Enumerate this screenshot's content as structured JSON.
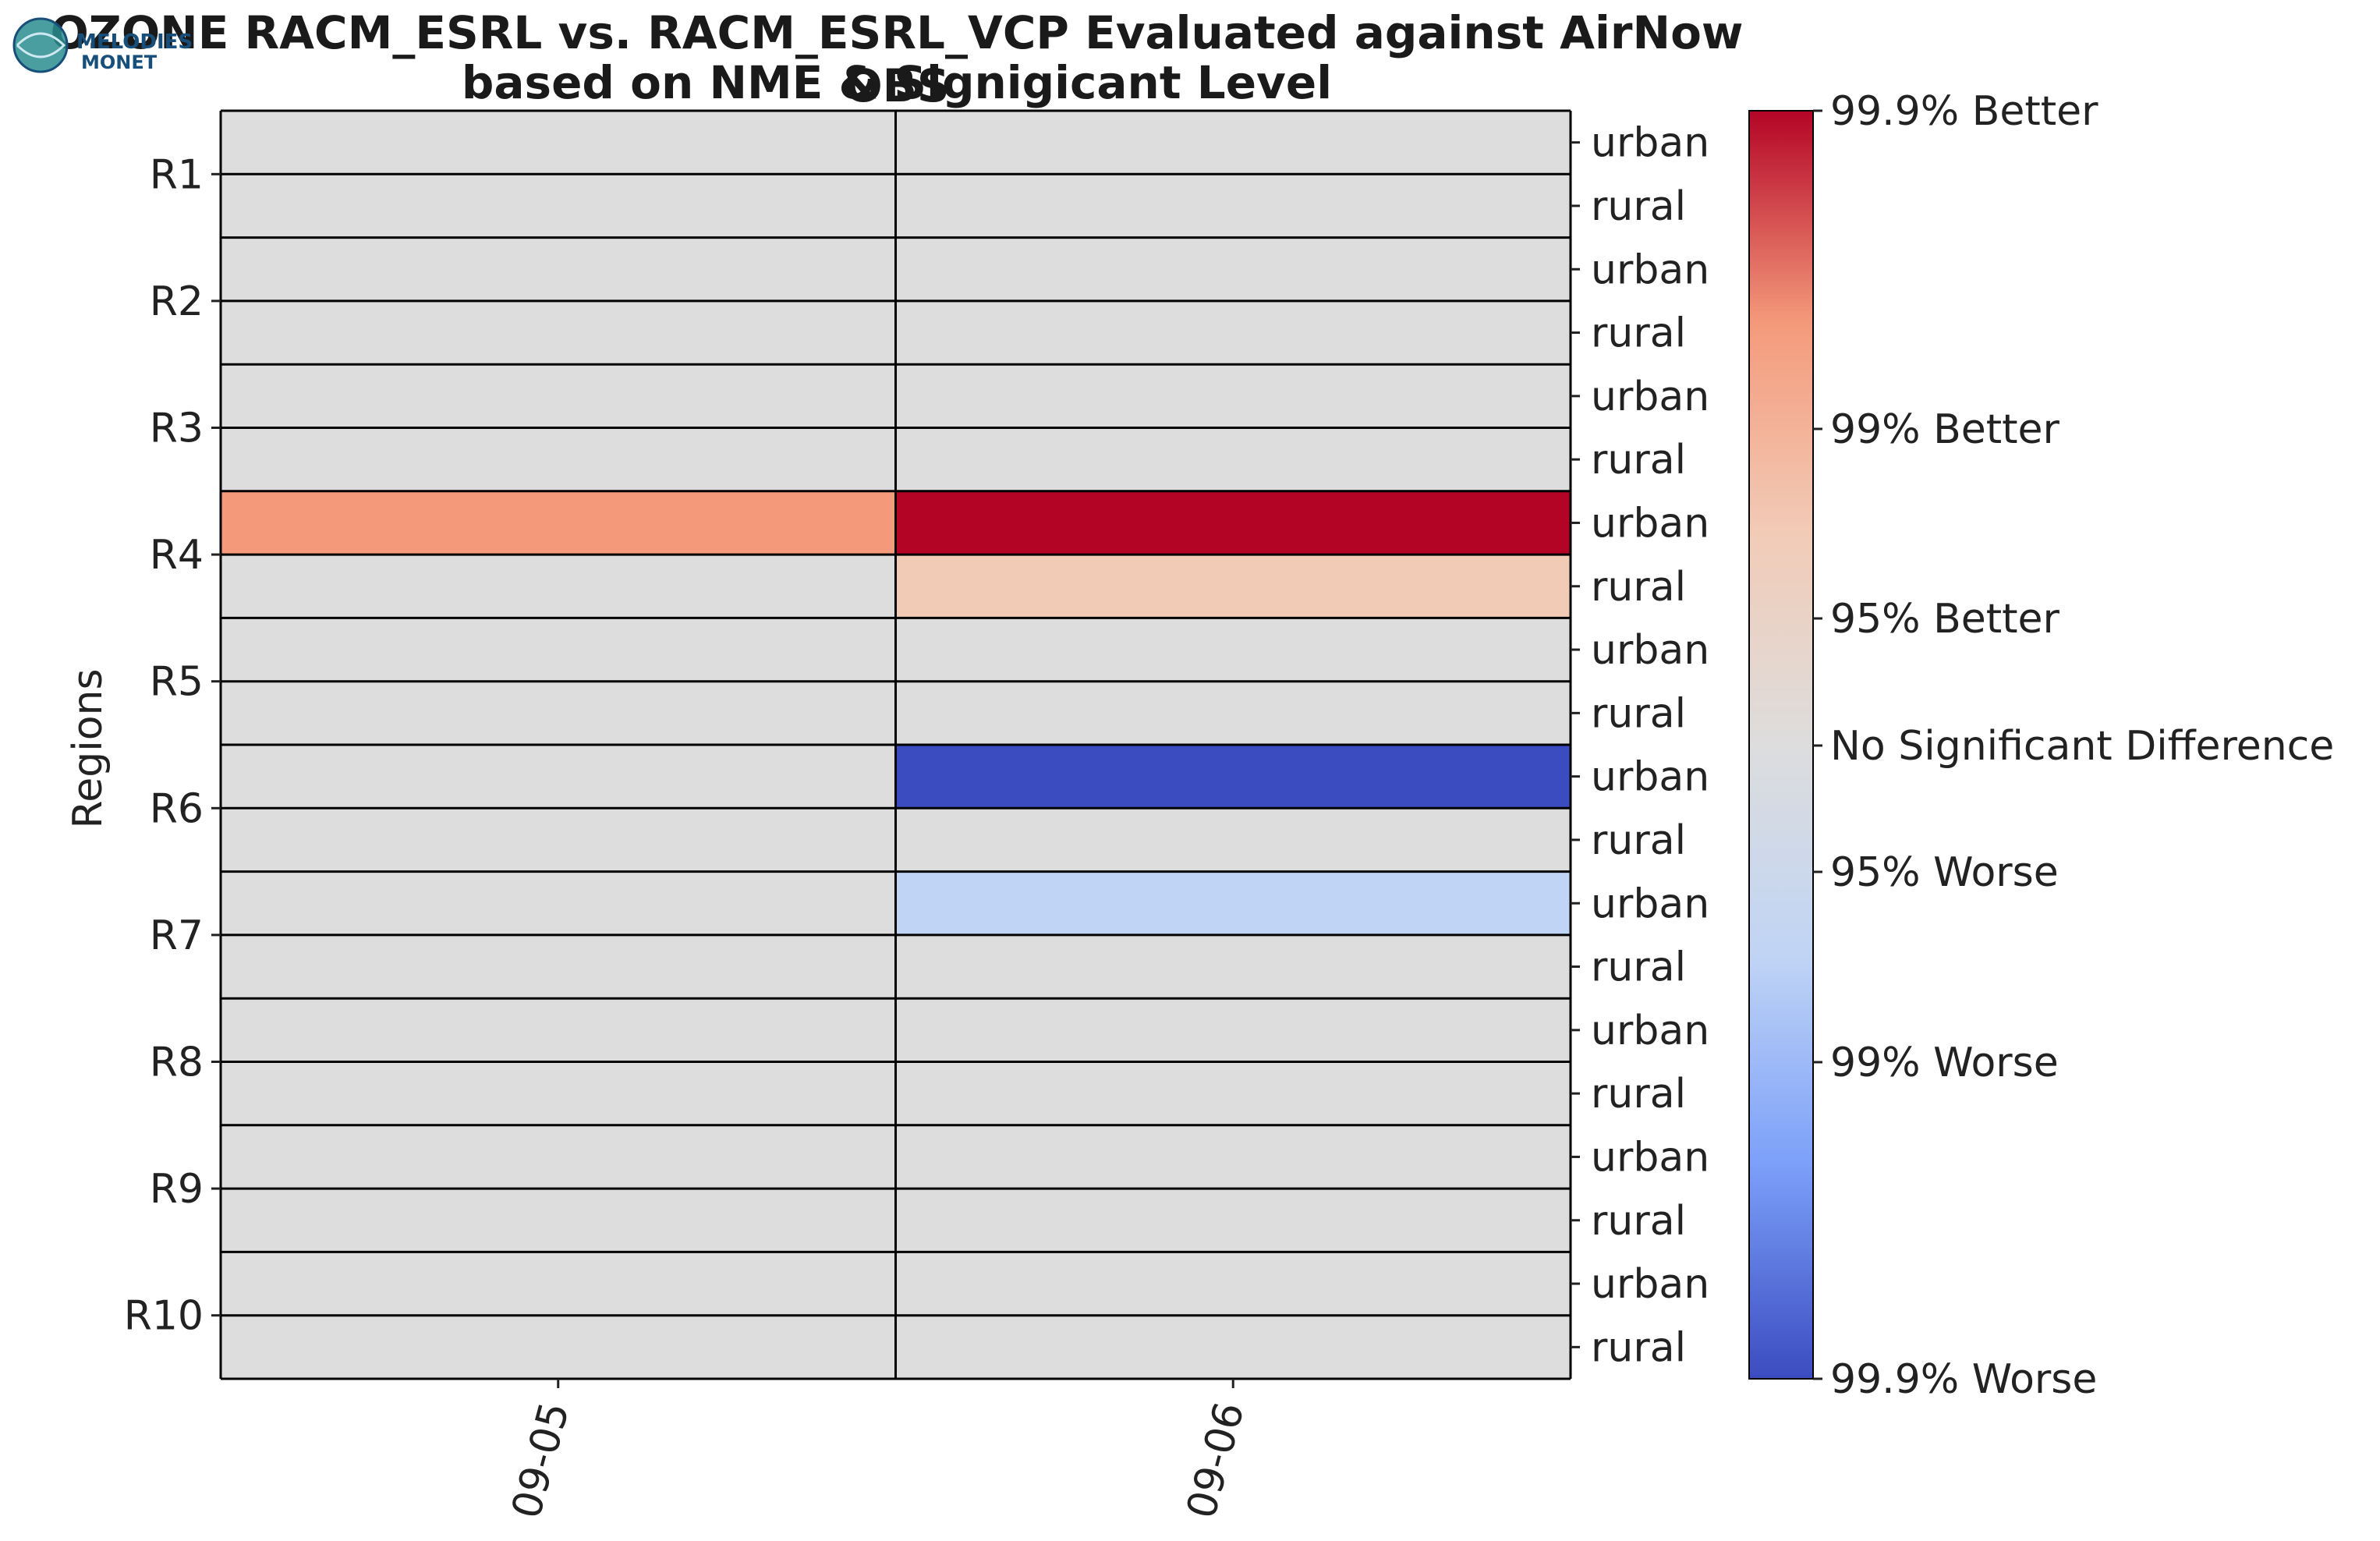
{
  "logo": {
    "text_line1": "MELODIES",
    "text_line2": "MONET"
  },
  "chart_data": {
    "type": "heatmap",
    "title": "OZONE RACM_ESRL vs. RACM_ESRL_VCP Evaluated against AirNow OBS",
    "subtitle": "based on NME & Signigicant Level",
    "xlabel": "",
    "ylabel": "Regions",
    "x_categories": [
      "09-05",
      "09-06"
    ],
    "regions": [
      "R1",
      "R2",
      "R3",
      "R4",
      "R5",
      "R6",
      "R7",
      "R8",
      "R9",
      "R10"
    ],
    "row_labels": [
      "urban",
      "rural",
      "urban",
      "rural",
      "urban",
      "rural",
      "urban",
      "rural",
      "urban",
      "rural",
      "urban",
      "rural",
      "urban",
      "rural",
      "urban",
      "rural",
      "urban",
      "rural",
      "urban",
      "rural"
    ],
    "values": [
      [
        0,
        0
      ],
      [
        0,
        0
      ],
      [
        0,
        0
      ],
      [
        0,
        0
      ],
      [
        0,
        0
      ],
      [
        0,
        0
      ],
      [
        2,
        3
      ],
      [
        0,
        1
      ],
      [
        0,
        0
      ],
      [
        0,
        0
      ],
      [
        0,
        -3
      ],
      [
        0,
        0
      ],
      [
        0,
        -1
      ],
      [
        0,
        0
      ],
      [
        0,
        0
      ],
      [
        0,
        0
      ],
      [
        0,
        0
      ],
      [
        0,
        0
      ],
      [
        0,
        0
      ],
      [
        0,
        0
      ]
    ],
    "colorbar": {
      "range": [
        -3,
        3
      ],
      "ticks": [
        {
          "value": 3,
          "label": "99.9% Better"
        },
        {
          "value": 2,
          "label": "99% Better"
        },
        {
          "value": 1,
          "label": "95% Better"
        },
        {
          "value": 0,
          "label": "No Significant Difference"
        },
        {
          "value": -1,
          "label": "95% Worse"
        },
        {
          "value": -2,
          "label": "99% Worse"
        },
        {
          "value": -3,
          "label": "99.9% Worse"
        }
      ]
    },
    "colors": {
      "3": "#b40426",
      "2": "#f49a7b",
      "1": "#f2cbb7",
      "0": "#dddddd",
      "-1": "#c0d4f5",
      "-2": "#7b9ff9",
      "-3": "#3b4cc0"
    },
    "colormap": "coolwarm"
  }
}
